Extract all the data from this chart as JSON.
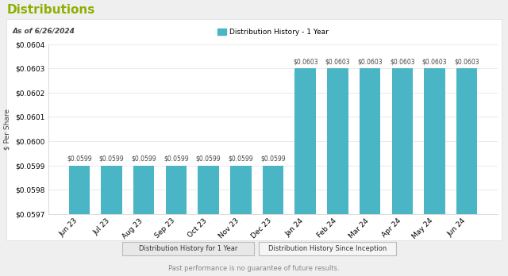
{
  "title": "Distributions",
  "as_of": "As of 6/26/2024",
  "legend_label": "Distribution History - 1 Year",
  "categories": [
    "Jun 23",
    "Jul 23",
    "Aug 23",
    "Sep 23",
    "Oct 23",
    "Nov 23",
    "Dec 23",
    "Jan 24",
    "Feb 24",
    "Mar 24",
    "Apr 24",
    "May 24",
    "Jun 24"
  ],
  "values": [
    0.0599,
    0.0599,
    0.0599,
    0.0599,
    0.0599,
    0.0599,
    0.0599,
    0.0603,
    0.0603,
    0.0603,
    0.0603,
    0.0603,
    0.0603
  ],
  "bar_color": "#4ab5c4",
  "bar_labels": [
    "$0.0599",
    "$0.0599",
    "$0.0599",
    "$0.0599",
    "$0.0599",
    "$0.0599",
    "$0.0599",
    "$0.0603",
    "$0.0603",
    "$0.0603",
    "$0.0603",
    "$0.0603",
    "$0.0603"
  ],
  "ylabel": "$ Per Share",
  "ylim_min": 0.0597,
  "ylim_max": 0.0604,
  "yticks": [
    0.0597,
    0.0598,
    0.0599,
    0.06,
    0.0601,
    0.0602,
    0.0603,
    0.0604
  ],
  "bg_color": "#efefef",
  "chart_bg": "#ffffff",
  "title_color": "#8db000",
  "footer_text": "Past performance is no guarantee of future results.",
  "button1": "Distribution History for 1 Year",
  "button2": "Distribution History Since Inception"
}
